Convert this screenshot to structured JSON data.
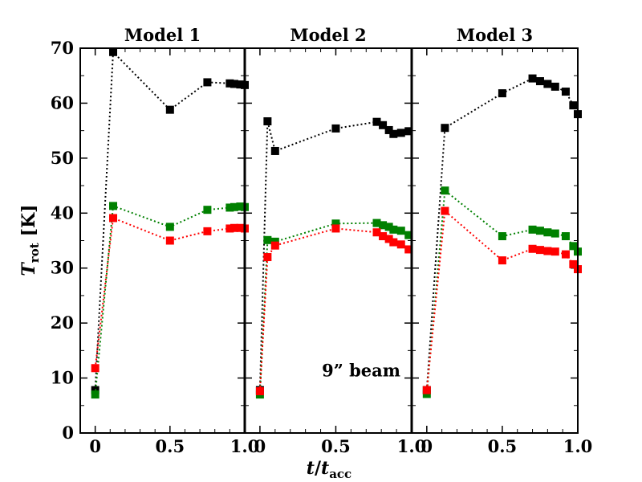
{
  "chart_data": {
    "type": "scatter",
    "y_label": {
      "main": "T",
      "sub": "rot",
      "unit": "[K]"
    },
    "x_label": {
      "main": "t",
      "slash": "/",
      "main2": "t",
      "sub": "acc"
    },
    "ylim": [
      0,
      70
    ],
    "yticks": [
      0,
      10,
      20,
      30,
      40,
      50,
      60,
      70
    ],
    "ytick_labels": [
      "0",
      "10",
      "20",
      "30",
      "40",
      "50",
      "60",
      "70"
    ],
    "xticks": [
      0,
      0.5,
      1.0
    ],
    "xtick_labels": [
      "0",
      "0.5",
      "1.0"
    ],
    "colors": {
      "black": "#000000",
      "green": "#008000",
      "red": "#ff0000"
    },
    "annotation": {
      "text": "9”  beam",
      "panel": 1
    },
    "panels": [
      {
        "title": "Model 1",
        "xlim": [
          -0.1,
          1.0
        ],
        "series": [
          {
            "color": "black",
            "x": [
              0,
              0.12,
              0.5,
              0.75,
              0.9,
              0.93,
              0.97,
              1.0
            ],
            "y": [
              7.8,
              69.3,
              58.8,
              63.8,
              63.6,
              63.5,
              63.4,
              63.3
            ]
          },
          {
            "color": "green",
            "x": [
              0,
              0.12,
              0.5,
              0.75,
              0.9,
              0.93,
              0.97,
              1.0
            ],
            "y": [
              7.0,
              41.3,
              37.5,
              40.6,
              41.0,
              41.1,
              41.2,
              41.1
            ]
          },
          {
            "color": "red",
            "x": [
              0,
              0.12,
              0.5,
              0.75,
              0.9,
              0.93,
              0.97,
              1.0
            ],
            "y": [
              11.8,
              39.1,
              35.0,
              36.7,
              37.2,
              37.3,
              37.3,
              37.2
            ]
          }
        ]
      },
      {
        "title": "Model 2",
        "xlim": [
          -0.1,
          1.0
        ],
        "series": [
          {
            "color": "black",
            "x": [
              0,
              0.05,
              0.1,
              0.5,
              0.77,
              0.81,
              0.85,
              0.88,
              0.93,
              0.98
            ],
            "y": [
              7.8,
              56.7,
              51.3,
              55.4,
              56.6,
              56.0,
              55.1,
              54.4,
              54.6,
              54.9
            ]
          },
          {
            "color": "green",
            "x": [
              0,
              0.05,
              0.1,
              0.5,
              0.77,
              0.81,
              0.85,
              0.88,
              0.93,
              0.98
            ],
            "y": [
              7.0,
              35.1,
              34.8,
              38.1,
              38.2,
              37.8,
              37.5,
              37.0,
              36.8,
              36.0
            ]
          },
          {
            "color": "red",
            "x": [
              0,
              0.05,
              0.1,
              0.5,
              0.77,
              0.81,
              0.85,
              0.88,
              0.93,
              0.98
            ],
            "y": [
              7.6,
              32.0,
              34.1,
              37.2,
              36.5,
              35.8,
              35.3,
              34.7,
              34.3,
              33.4
            ]
          }
        ]
      },
      {
        "title": "Model 3",
        "xlim": [
          -0.1,
          1.0
        ],
        "series": [
          {
            "color": "black",
            "x": [
              0,
              0.12,
              0.5,
              0.7,
              0.75,
              0.8,
              0.85,
              0.92,
              0.97,
              1.0
            ],
            "y": [
              7.8,
              55.5,
              61.8,
              64.5,
              64.0,
              63.5,
              63.0,
              62.1,
              59.6,
              58.0
            ]
          },
          {
            "color": "green",
            "x": [
              0,
              0.12,
              0.5,
              0.7,
              0.75,
              0.8,
              0.85,
              0.92,
              0.97,
              1.0
            ],
            "y": [
              7.1,
              44.1,
              35.8,
              37.0,
              36.8,
              36.5,
              36.3,
              35.8,
              34.0,
              33.0
            ]
          },
          {
            "color": "red",
            "x": [
              0,
              0.12,
              0.5,
              0.7,
              0.75,
              0.8,
              0.85,
              0.92,
              0.97,
              1.0
            ],
            "y": [
              7.8,
              40.4,
              31.4,
              33.5,
              33.3,
              33.1,
              33.0,
              32.5,
              30.7,
              29.8
            ]
          }
        ]
      }
    ]
  }
}
